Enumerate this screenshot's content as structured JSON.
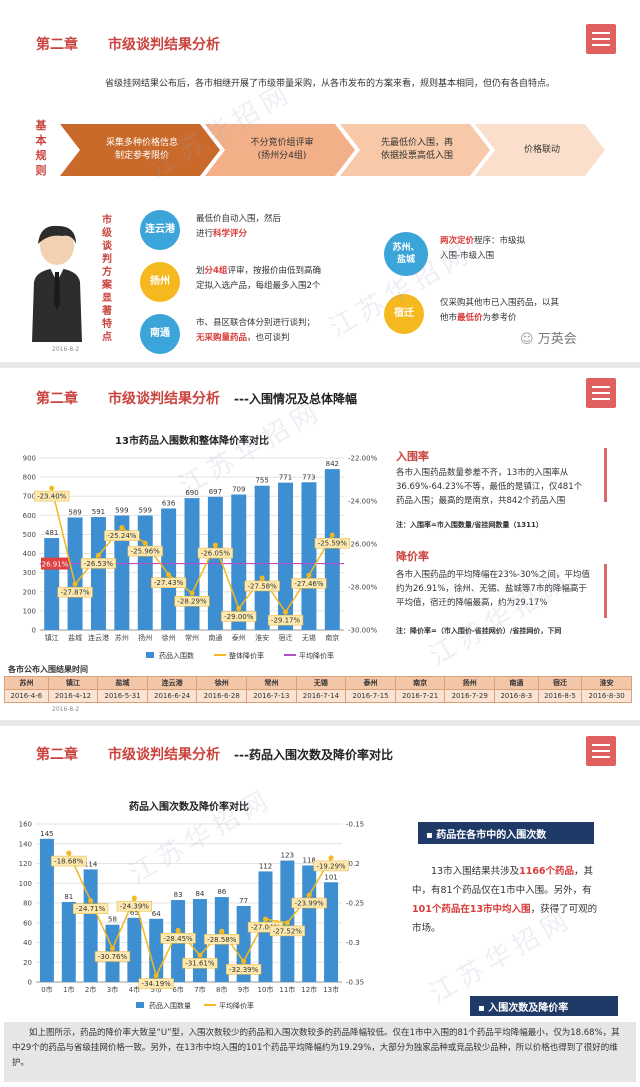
{
  "slide1": {
    "chapter": "第二章",
    "chapter_title": "市级谈判结果分析",
    "intro": "省级挂网结果公布后，各市相继开展了市级带量采购，从各市发布的方案来看，规则基本相同，但仍有各自特点。",
    "rules_label": "基本规则",
    "steps": [
      "采集多种价格信息\n制定参考限价",
      "不分竞价组评审\n(扬州分4组)",
      "先最低价入围，再\n依据投票高低入围",
      "价格联动"
    ],
    "side_label": "市级谈判方案显著特点",
    "date": "2016-8-2",
    "cities": [
      {
        "name": "连云港",
        "text_pre": "最低价自动入围，然后\n进行",
        "text_hl": "科学评分",
        "text_post": ""
      },
      {
        "name": "扬州",
        "text_pre": "划",
        "text_hl": "分4组",
        "text_post": "评审，按报价由低到高确\n定拟入选产品，每组最多入围2个"
      },
      {
        "name": "南通",
        "text_pre": "市、县区联合体分别进行谈判；\n",
        "text_hl": "无采购量药品",
        "text_post": "，也可谈判"
      },
      {
        "name": "苏州、\n盐城",
        "text_pre": "",
        "text_hl": "两次定价",
        "text_post": "程序：市级拟\n入围-市级入围"
      },
      {
        "name": "宿迁",
        "text_pre": "仅采购其他市已入围药品，以其\n他市",
        "text_hl": "最低价",
        "text_post": "为参考价"
      }
    ],
    "logo": "万英会",
    "watermark": "江苏华招网"
  },
  "slide2": {
    "chapter": "第二章",
    "chapter_title": "市级谈判结果分析",
    "subtitle": "---入围情况及总体降幅",
    "date": "2016-8-2",
    "panel1_title": "入围率",
    "panel1_text": "各市入围药品数量参差不齐，13市的入围率从36.69%-64.23%不等，最低的是镇江，仅481个药品入围；最高的是南京，共842个药品入围",
    "panel1_note": "注：入围率=市入围数量/省挂网数量（1311）",
    "panel2_title": "降价率",
    "panel2_text": "各市入围药品的平均降幅在23%-30%之间，平均值约为26.91%，徐州、无锡、盐城等7市的降幅高于平均值，宿迁的降幅最高，约为29.17%",
    "panel2_note": "注：降价率=（市入围价-省挂网价）/省挂网价，下同",
    "timeline_title": "各市公布入围结果时间",
    "timeline": [
      {
        "city": "苏州",
        "date": "2016-4-6"
      },
      {
        "city": "镇江",
        "date": "2016-4-12"
      },
      {
        "city": "盐城",
        "date": "2016-5-31"
      },
      {
        "city": "连云港",
        "date": "2016-6-24"
      },
      {
        "city": "徐州",
        "date": "2016-6-28"
      },
      {
        "city": "常州",
        "date": "2016-7-13"
      },
      {
        "city": "无锡",
        "date": "2016-7-14"
      },
      {
        "city": "泰州",
        "date": "2016-7-15"
      },
      {
        "city": "南京",
        "date": "2016-7-21"
      },
      {
        "city": "扬州",
        "date": "2016-7-29"
      },
      {
        "city": "南通",
        "date": "2016-8-3"
      },
      {
        "city": "宿迁",
        "date": "2016-8-5"
      },
      {
        "city": "淮安",
        "date": "2016-8-30"
      }
    ]
  },
  "slide3": {
    "chapter": "第二章",
    "chapter_title": "市级谈判结果分析",
    "subtitle": "---药品入围次数及降价率对比",
    "box1_title": "药品在各市中的入围次数",
    "box1_text_parts": [
      "13市入围结果共涉及",
      "1166个药品",
      "，其中，有81个药品仅在1市中入围。另外，有",
      "101个药品在13市中均入围",
      "，获得了可观的市场。"
    ],
    "box2_title": "入围次数及降价率",
    "bottom_text": "如上图所示，药品的降价率大致呈“U”型，入围次数较少的药品和入围次数较多的药品降幅较低。仅在1市中入围的81个药品平均降幅最小，仅为18.68%，其中29个的药品与省级挂网价格一致。另外，在13市中均入围的101个药品平均降幅约为19.29%，大部分为独家品种或竞品较少品种，所以价格也得到了很好的维护。"
  },
  "chart_data": [
    {
      "type": "bar",
      "title": "13市药品入围数和整体降价率对比",
      "categories": [
        "镇江",
        "盐城",
        "连云港",
        "苏州",
        "扬州",
        "徐州",
        "常州",
        "南通",
        "泰州",
        "淮安",
        "宿迁",
        "无锡",
        "南京"
      ],
      "series": [
        {
          "name": "药品入围数",
          "type": "bar",
          "values": [
            481,
            589,
            591,
            599,
            599,
            636,
            690,
            697,
            709,
            755,
            771,
            773,
            842
          ]
        },
        {
          "name": "整体降价率",
          "type": "line",
          "axis": "right",
          "values": [
            -23.4,
            -27.87,
            -26.53,
            -25.24,
            -25.96,
            -27.43,
            -28.29,
            -26.05,
            -29.0,
            -27.58,
            -29.17,
            -27.46,
            -25.59
          ]
        },
        {
          "name": "平均降价率",
          "type": "line",
          "axis": "right",
          "values": [
            -26.91,
            -26.91,
            -26.91,
            -26.91,
            -26.91,
            -26.91,
            -26.91,
            -26.91,
            -26.91,
            -26.91,
            -26.91,
            -26.91,
            -26.91
          ]
        }
      ],
      "ylim": [
        0,
        900
      ],
      "y2lim": [
        -30,
        -22
      ],
      "yticks": [
        0,
        100,
        200,
        300,
        400,
        500,
        600,
        700,
        800,
        900
      ],
      "y2ticks": [
        "-22.00%",
        "-24.00%",
        "-26.00%",
        "-28.00%",
        "-30.00%"
      ],
      "avg_label": "26.91%",
      "legend": "bottom"
    },
    {
      "type": "bar",
      "title": "药品入围次数及降价率对比",
      "categories": [
        "0市",
        "1市",
        "2市",
        "3市",
        "4市",
        "5市",
        "6市",
        "7市",
        "8市",
        "9市",
        "10市",
        "11市",
        "12市",
        "13市"
      ],
      "series": [
        {
          "name": "药品入围数量",
          "type": "bar",
          "values": [
            145,
            81,
            114,
            58,
            65,
            64,
            83,
            84,
            86,
            77,
            112,
            123,
            118,
            101
          ]
        },
        {
          "name": "平均降价率",
          "type": "line",
          "axis": "right",
          "values": [
            null,
            -18.68,
            -24.71,
            -30.76,
            -24.39,
            -34.19,
            -28.45,
            -31.61,
            -28.58,
            -32.39,
            -27.04,
            -27.52,
            -23.99,
            -19.29
          ]
        }
      ],
      "ylim": [
        0,
        160
      ],
      "y2lim": [
        -0.35,
        -0.15
      ],
      "yticks": [
        0,
        20,
        40,
        60,
        80,
        100,
        120,
        140,
        160
      ],
      "y2ticks": [
        "-0.15",
        "-0.2",
        "-0.25",
        "-0.3",
        "-0.35"
      ],
      "legend": "bottom"
    }
  ]
}
